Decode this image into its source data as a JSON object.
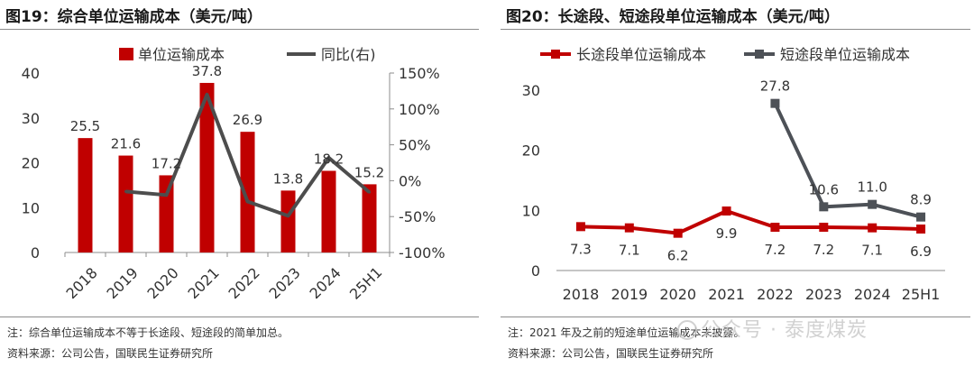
{
  "chart_data": [
    {
      "type": "bar",
      "title": "图19：综合单位运输成本（美元/吨）",
      "categories": [
        "2018",
        "2019",
        "2020",
        "2021",
        "2022",
        "2023",
        "2024",
        "25H1"
      ],
      "series": [
        {
          "name": "单位运输成本",
          "type": "bar",
          "axis": "left",
          "color": "#c00000",
          "values": [
            25.5,
            21.6,
            17.2,
            37.8,
            26.9,
            13.8,
            18.2,
            15.2
          ],
          "labels": [
            "25.5",
            "21.6",
            "17.2",
            "37.8",
            "26.9",
            "13.8",
            "18.2",
            "15.2"
          ]
        },
        {
          "name": "同比(右)",
          "type": "line",
          "axis": "right",
          "color": "#4d4d4d",
          "values": [
            null,
            -15,
            -20,
            120,
            -29,
            -49,
            32,
            -16
          ]
        }
      ],
      "ylim": [
        0,
        40
      ],
      "yticks": [
        "0",
        "10",
        "20",
        "30",
        "40"
      ],
      "y2lim": [
        -100,
        150
      ],
      "y2ticks": [
        "-100%",
        "-50%",
        "0%",
        "50%",
        "100%",
        "150%"
      ],
      "legend": "top",
      "note": "注：综合单位运输成本不等于长途段、短途段的简单加总。",
      "source": "资料来源：公司公告，国联民生证券研究所"
    },
    {
      "type": "line",
      "title": "图20：长途段、短途段单位运输成本（美元/吨）",
      "categories": [
        "2018",
        "2019",
        "2020",
        "2021",
        "2022",
        "2023",
        "2024",
        "25H1"
      ],
      "series": [
        {
          "name": "长途段单位运输成本",
          "color": "#c00000",
          "values": [
            7.3,
            7.1,
            6.2,
            9.9,
            7.2,
            7.2,
            7.1,
            6.9
          ],
          "labels": [
            "7.3",
            "7.1",
            "6.2",
            "9.9",
            "7.2",
            "7.2",
            "7.1",
            "6.9"
          ]
        },
        {
          "name": "短途段单位运输成本",
          "color": "#4d5157",
          "values": [
            null,
            null,
            null,
            null,
            27.8,
            10.6,
            11.0,
            8.9
          ],
          "labels": [
            "",
            "",
            "",
            "",
            "27.8",
            "10.6",
            "11.0",
            "8.9"
          ]
        }
      ],
      "ylim": [
        0,
        30
      ],
      "yticks": [
        "0",
        "10",
        "20",
        "30"
      ],
      "legend": "top",
      "note": "注：2021 年及之前的短途单位运输成本未披露。",
      "source": "资料来源：公司公告，国联民生证券研究所"
    }
  ],
  "watermark": {
    "text": "公众号 · 泰度煤炭"
  }
}
